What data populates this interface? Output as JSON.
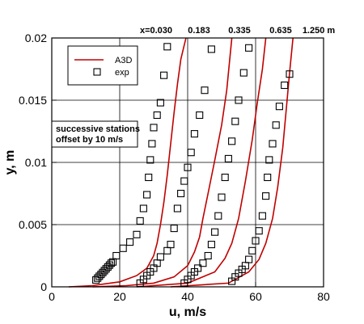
{
  "chart_data": {
    "type": "line",
    "xlabel": "u, m/s",
    "ylabel": "y, m",
    "xlim": [
      0,
      80
    ],
    "ylim": [
      0,
      0.02
    ],
    "xticks": [
      "0",
      "20",
      "40",
      "60",
      "80"
    ],
    "yticks": [
      "0",
      "0.005",
      "0.01",
      "0.015",
      "0.02"
    ],
    "grid": true,
    "legend": {
      "placement": "top-left",
      "entries": [
        "A3D",
        "exp"
      ]
    },
    "annotation": "successive stations\noffset by 10 m/s",
    "station_labels": [
      "x=0.030",
      "0.183",
      "0.335",
      "0.635",
      "1.250 m"
    ],
    "colors": {
      "model": "#c00000",
      "experiment": "#000000"
    },
    "series": [
      {
        "name": "A3D",
        "style": "line",
        "curves": [
          {
            "x": [
              5,
              12,
              20,
              25,
              28,
              30,
              31,
              32,
              33,
              34,
              35,
              36,
              37,
              38,
              39.5
            ],
            "y": [
              0,
              0.0001,
              0.0004,
              0.0009,
              0.0015,
              0.0025,
              0.0035,
              0.005,
              0.0068,
              0.009,
              0.0115,
              0.014,
              0.0163,
              0.0183,
              0.02
            ]
          },
          {
            "x": [
              12,
              22,
              30,
              36,
              40,
              42,
              43.5,
              44.5,
              46,
              48,
              50,
              51.5,
              53
            ],
            "y": [
              0,
              0.0001,
              0.0003,
              0.0008,
              0.0017,
              0.0028,
              0.004,
              0.0055,
              0.0075,
              0.0102,
              0.013,
              0.0158,
              0.02
            ]
          },
          {
            "x": [
              25,
              40,
              48,
              51,
              53,
              55,
              57,
              59,
              60.5,
              62,
              63
            ],
            "y": [
              0,
              0.0003,
              0.0012,
              0.0023,
              0.0035,
              0.0055,
              0.0085,
              0.0118,
              0.0148,
              0.0175,
              0.02
            ]
          },
          {
            "x": [
              35,
              52,
              58,
              61,
              63,
              65,
              66.5,
              68,
              69,
              70,
              71
            ],
            "y": [
              0,
              0.0003,
              0.0012,
              0.0022,
              0.0035,
              0.0055,
              0.008,
              0.0112,
              0.0142,
              0.0172,
              0.02
            ]
          }
        ]
      },
      {
        "name": "exp",
        "style": "markers",
        "curves": [
          {
            "x": [
              13,
              13.5,
              14,
              14.5,
              15,
              15.5,
              16,
              16.5,
              17,
              17.5,
              18,
              19,
              21,
              23,
              25,
              26,
              27,
              28,
              28.5,
              29,
              29.5,
              30,
              31,
              32,
              33,
              34
            ],
            "y": [
              0.00055,
              0.0007,
              0.00085,
              0.001,
              0.00115,
              0.0013,
              0.00145,
              0.0016,
              0.00175,
              0.0019,
              0.002,
              0.0025,
              0.0031,
              0.0036,
              0.0042,
              0.0053,
              0.0063,
              0.0074,
              0.0088,
              0.0102,
              0.0115,
              0.0128,
              0.0138,
              0.0148,
              0.017,
              0.0193
            ]
          },
          {
            "x": [
              26,
              27,
              28,
              29,
              30,
              31,
              32,
              34,
              35,
              36,
              37,
              38,
              39,
              40,
              41,
              42,
              43.5,
              45,
              47
            ],
            "y": [
              0.0003,
              0.0006,
              0.0009,
              0.0012,
              0.0015,
              0.0019,
              0.0024,
              0.0029,
              0.0034,
              0.0047,
              0.0063,
              0.0075,
              0.0085,
              0.0096,
              0.0108,
              0.0123,
              0.0138,
              0.0158,
              0.0191
            ]
          },
          {
            "x": [
              39,
              40,
              41,
              42,
              43,
              44.5,
              46,
              47,
              48,
              49,
              50,
              51,
              52,
              53,
              54,
              55,
              56.5,
              58
            ],
            "y": [
              0.0003,
              0.0006,
              0.0009,
              0.0012,
              0.0015,
              0.0019,
              0.0025,
              0.0034,
              0.0044,
              0.0057,
              0.0072,
              0.0088,
              0.0103,
              0.0117,
              0.0133,
              0.015,
              0.0172,
              0.0192
            ]
          },
          {
            "x": [
              53,
              54,
              55,
              56,
              57,
              58,
              59,
              60,
              61,
              62,
              63,
              63.5,
              64,
              65,
              66,
              67,
              68.5,
              70
            ],
            "y": [
              0.00045,
              0.0008,
              0.0011,
              0.0014,
              0.0017,
              0.0022,
              0.0029,
              0.0037,
              0.0045,
              0.0057,
              0.0073,
              0.0088,
              0.0102,
              0.0115,
              0.013,
              0.0145,
              0.0162,
              0.0171
            ]
          }
        ]
      }
    ]
  }
}
